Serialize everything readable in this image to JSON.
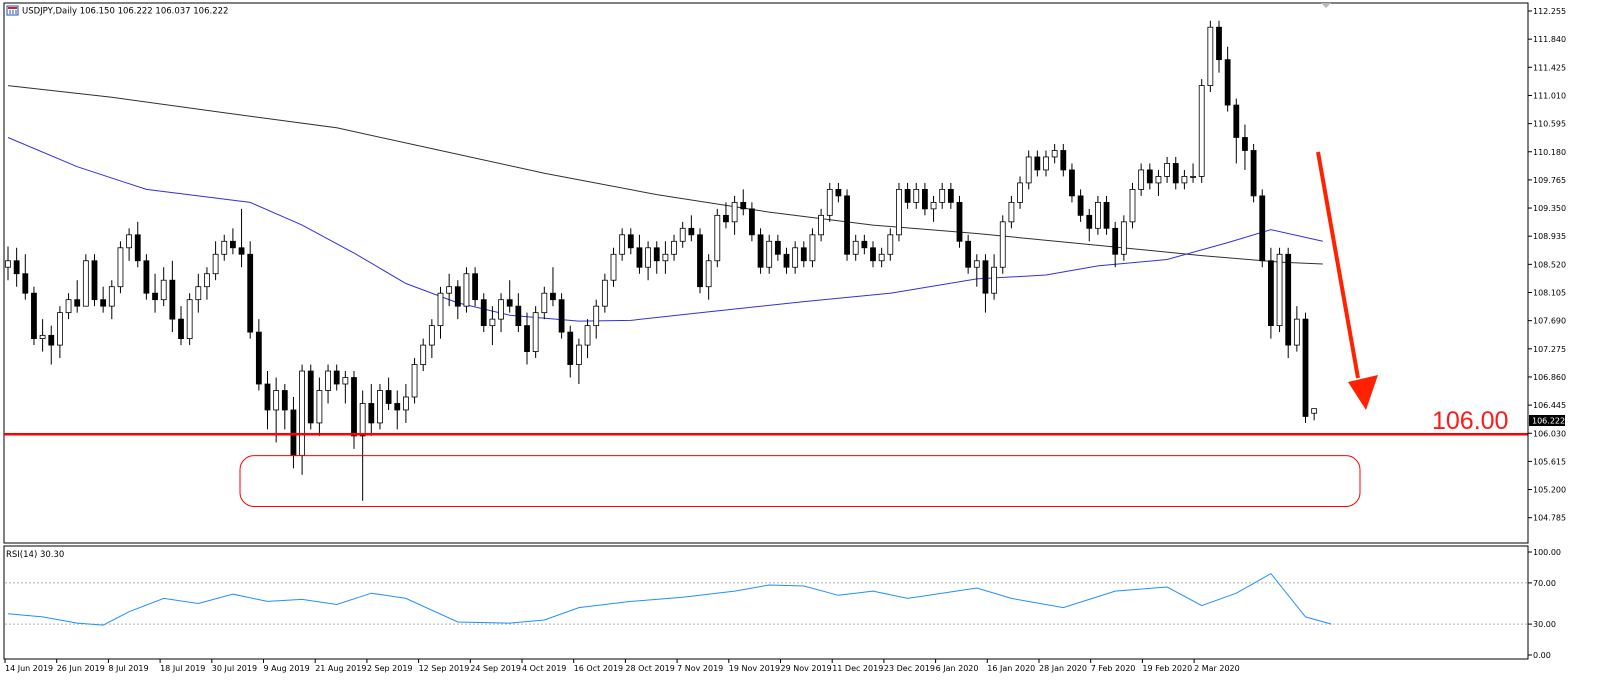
{
  "header": {
    "title": "USDJPY,Daily  106.150 106.222 106.037 106.222",
    "icon": "chart-window-icon"
  },
  "price_axis": {
    "ticks": [
      "112.255",
      "111.840",
      "111.425",
      "111.010",
      "110.595",
      "110.180",
      "109.765",
      "109.350",
      "108.935",
      "108.520",
      "108.105",
      "107.690",
      "107.275",
      "106.860",
      "106.445",
      "106.030",
      "105.615",
      "105.200",
      "104.785"
    ],
    "current_label": "106.222"
  },
  "rsi_axis": {
    "ticks": [
      "100.00",
      "70.00",
      "30.00",
      "0.00"
    ]
  },
  "rsi_panel": {
    "title": "RSI(14) 30.30"
  },
  "annotation": {
    "level_label": "106.00",
    "level_color": "#ff0000",
    "arrow_color": "#ff2200"
  },
  "date_axis": {
    "labels": [
      "14 Jun 2019",
      "26 Jun 2019",
      "8 Jul 2019",
      "18 Jul 2019",
      "30 Jul 2019",
      "9 Aug 2019",
      "21 Aug 2019",
      "2 Sep 2019",
      "12 Sep 2019",
      "24 Sep 2019",
      "4 Oct 2019",
      "16 Oct 2019",
      "28 Oct 2019",
      "7 Nov 2019",
      "19 Nov 2019",
      "29 Nov 2019",
      "11 Dec 2019",
      "23 Dec 2019",
      "6 Jan 2020",
      "16 Jan 2020",
      "28 Jan 2020",
      "7 Feb 2020",
      "19 Feb 2020",
      "2 Mar 2020"
    ]
  },
  "chart_data": {
    "type": "candlestick",
    "symbol": "USDJPY",
    "timeframe": "Daily",
    "ylim": [
      104.55,
      112.35
    ],
    "ohlc": [
      [
        108.4,
        108.72,
        108.2,
        108.5
      ],
      [
        108.5,
        108.7,
        108.1,
        108.3
      ],
      [
        108.3,
        108.6,
        107.9,
        108.0
      ],
      [
        108.0,
        108.1,
        107.2,
        107.3
      ],
      [
        107.3,
        107.6,
        107.1,
        107.35
      ],
      [
        107.35,
        107.5,
        106.9,
        107.2
      ],
      [
        107.2,
        107.8,
        107.0,
        107.7
      ],
      [
        107.7,
        108.0,
        107.6,
        107.9
      ],
      [
        107.9,
        108.2,
        107.7,
        107.8
      ],
      [
        107.8,
        108.6,
        107.8,
        108.5
      ],
      [
        108.5,
        108.6,
        107.8,
        107.9
      ],
      [
        107.9,
        108.1,
        107.7,
        107.8
      ],
      [
        107.8,
        108.2,
        107.6,
        108.1
      ],
      [
        108.1,
        108.8,
        108.0,
        108.7
      ],
      [
        108.7,
        109.0,
        108.5,
        108.9
      ],
      [
        108.9,
        109.1,
        108.4,
        108.5
      ],
      [
        108.5,
        108.6,
        107.9,
        108.0
      ],
      [
        108.0,
        108.3,
        107.7,
        107.9
      ],
      [
        107.9,
        108.4,
        107.8,
        108.2
      ],
      [
        108.2,
        108.5,
        107.4,
        107.6
      ],
      [
        107.6,
        107.8,
        107.2,
        107.3
      ],
      [
        107.3,
        108.0,
        107.2,
        107.9
      ],
      [
        107.9,
        108.3,
        107.7,
        108.1
      ],
      [
        108.1,
        108.4,
        107.9,
        108.3
      ],
      [
        108.3,
        108.8,
        108.2,
        108.6
      ],
      [
        108.6,
        108.9,
        108.5,
        108.8
      ],
      [
        108.8,
        109.0,
        108.6,
        108.7
      ],
      [
        108.7,
        109.3,
        108.4,
        108.6
      ],
      [
        108.6,
        108.8,
        107.3,
        107.4
      ],
      [
        107.4,
        107.6,
        106.5,
        106.6
      ],
      [
        106.6,
        106.8,
        105.9,
        106.2
      ],
      [
        106.2,
        106.7,
        105.7,
        106.5
      ],
      [
        106.5,
        106.6,
        105.9,
        106.2
      ],
      [
        106.2,
        106.4,
        105.3,
        105.5
      ],
      [
        105.5,
        106.9,
        105.2,
        106.8
      ],
      [
        106.8,
        106.9,
        105.9,
        106.0
      ],
      [
        106.0,
        106.7,
        105.8,
        106.5
      ],
      [
        106.5,
        106.9,
        106.3,
        106.8
      ],
      [
        106.8,
        106.9,
        106.5,
        106.6
      ],
      [
        106.6,
        106.8,
        106.3,
        106.7
      ],
      [
        106.7,
        106.8,
        105.6,
        105.8
      ],
      [
        105.8,
        106.5,
        104.8,
        106.3
      ],
      [
        106.3,
        106.6,
        105.8,
        106.0
      ],
      [
        106.0,
        106.6,
        105.9,
        106.5
      ],
      [
        106.5,
        106.7,
        106.2,
        106.3
      ],
      [
        106.3,
        106.5,
        105.9,
        106.2
      ],
      [
        106.2,
        106.6,
        106.0,
        106.4
      ],
      [
        106.4,
        107.0,
        106.3,
        106.9
      ],
      [
        106.9,
        107.3,
        106.8,
        107.2
      ],
      [
        107.2,
        107.6,
        107.0,
        107.5
      ],
      [
        107.5,
        108.1,
        107.3,
        108.0
      ],
      [
        108.0,
        108.3,
        107.8,
        108.1
      ],
      [
        108.1,
        108.2,
        107.6,
        107.8
      ],
      [
        107.8,
        108.4,
        107.7,
        108.3
      ],
      [
        108.3,
        108.4,
        107.8,
        107.9
      ],
      [
        107.9,
        108.0,
        107.4,
        107.5
      ],
      [
        107.5,
        107.8,
        107.2,
        107.6
      ],
      [
        107.6,
        108.0,
        107.4,
        107.9
      ],
      [
        107.9,
        108.2,
        107.7,
        107.8
      ],
      [
        107.8,
        108.0,
        107.4,
        107.5
      ],
      [
        107.5,
        107.7,
        106.9,
        107.1
      ],
      [
        107.1,
        107.8,
        107.0,
        107.7
      ],
      [
        107.7,
        108.1,
        107.6,
        108.0
      ],
      [
        108.0,
        108.4,
        107.8,
        107.9
      ],
      [
        107.9,
        108.0,
        107.3,
        107.4
      ],
      [
        107.4,
        107.5,
        106.7,
        106.9
      ],
      [
        106.9,
        107.3,
        106.6,
        107.2
      ],
      [
        107.2,
        107.6,
        107.0,
        107.5
      ],
      [
        107.5,
        107.9,
        107.3,
        107.8
      ],
      [
        107.8,
        108.3,
        107.7,
        108.2
      ],
      [
        108.2,
        108.7,
        108.1,
        108.6
      ],
      [
        108.6,
        109.0,
        108.5,
        108.9
      ],
      [
        108.9,
        109.0,
        108.6,
        108.7
      ],
      [
        108.7,
        108.9,
        108.3,
        108.4
      ],
      [
        108.4,
        108.8,
        108.2,
        108.7
      ],
      [
        108.7,
        108.8,
        108.3,
        108.5
      ],
      [
        108.5,
        108.8,
        108.3,
        108.6
      ],
      [
        108.6,
        108.9,
        108.5,
        108.8
      ],
      [
        108.8,
        109.1,
        108.7,
        109.0
      ],
      [
        109.0,
        109.2,
        108.8,
        108.9
      ],
      [
        108.9,
        109.0,
        108.0,
        108.1
      ],
      [
        108.1,
        108.6,
        107.9,
        108.5
      ],
      [
        108.5,
        109.3,
        108.4,
        109.2
      ],
      [
        109.2,
        109.4,
        109.0,
        109.1
      ],
      [
        109.1,
        109.5,
        108.9,
        109.4
      ],
      [
        109.4,
        109.6,
        109.2,
        109.3
      ],
      [
        109.3,
        109.4,
        108.8,
        108.9
      ],
      [
        108.9,
        109.0,
        108.3,
        108.4
      ],
      [
        108.4,
        108.9,
        108.3,
        108.8
      ],
      [
        108.8,
        108.9,
        108.5,
        108.6
      ],
      [
        108.6,
        108.7,
        108.3,
        108.4
      ],
      [
        108.4,
        108.8,
        108.3,
        108.7
      ],
      [
        108.7,
        108.8,
        108.4,
        108.5
      ],
      [
        108.5,
        109.0,
        108.4,
        108.9
      ],
      [
        108.9,
        109.3,
        108.8,
        109.2
      ],
      [
        109.2,
        109.7,
        109.1,
        109.6
      ],
      [
        109.6,
        109.7,
        109.4,
        109.5
      ],
      [
        109.5,
        109.6,
        108.5,
        108.6
      ],
      [
        108.6,
        108.9,
        108.5,
        108.8
      ],
      [
        108.8,
        108.9,
        108.6,
        108.7
      ],
      [
        108.7,
        108.8,
        108.4,
        108.5
      ],
      [
        108.5,
        108.7,
        108.4,
        108.6
      ],
      [
        108.6,
        109.0,
        108.5,
        108.9
      ],
      [
        108.9,
        109.7,
        108.8,
        109.6
      ],
      [
        109.6,
        109.7,
        109.3,
        109.4
      ],
      [
        109.4,
        109.7,
        109.3,
        109.6
      ],
      [
        109.6,
        109.7,
        109.2,
        109.3
      ],
      [
        109.3,
        109.5,
        109.1,
        109.4
      ],
      [
        109.4,
        109.7,
        109.3,
        109.6
      ],
      [
        109.6,
        109.7,
        109.3,
        109.4
      ],
      [
        109.4,
        109.5,
        108.7,
        108.8
      ],
      [
        108.8,
        108.9,
        108.3,
        108.4
      ],
      [
        108.4,
        108.6,
        108.1,
        108.5
      ],
      [
        108.5,
        108.6,
        107.7,
        108.0
      ],
      [
        108.0,
        108.6,
        107.9,
        108.4
      ],
      [
        108.4,
        109.2,
        108.3,
        109.1
      ],
      [
        109.1,
        109.5,
        109.0,
        109.4
      ],
      [
        109.4,
        109.8,
        109.3,
        109.7
      ],
      [
        109.7,
        110.2,
        109.6,
        110.1
      ],
      [
        110.1,
        110.2,
        109.8,
        109.9
      ],
      [
        109.9,
        110.2,
        109.8,
        110.1
      ],
      [
        110.1,
        110.3,
        110.0,
        110.2
      ],
      [
        110.2,
        110.3,
        109.8,
        109.9
      ],
      [
        109.9,
        110.0,
        109.4,
        109.5
      ],
      [
        109.5,
        109.6,
        109.1,
        109.2
      ],
      [
        109.2,
        109.3,
        108.8,
        109.0
      ],
      [
        109.0,
        109.5,
        108.9,
        109.4
      ],
      [
        109.4,
        109.5,
        108.9,
        109.0
      ],
      [
        109.0,
        109.1,
        108.4,
        108.6
      ],
      [
        108.6,
        109.2,
        108.5,
        109.1
      ],
      [
        109.1,
        109.7,
        109.0,
        109.6
      ],
      [
        109.6,
        110.0,
        109.5,
        109.9
      ],
      [
        109.9,
        110.0,
        109.6,
        109.7
      ],
      [
        109.7,
        109.9,
        109.5,
        109.8
      ],
      [
        109.8,
        110.1,
        109.7,
        110.0
      ],
      [
        110.0,
        110.1,
        109.6,
        109.7
      ],
      [
        109.7,
        109.9,
        109.6,
        109.8
      ],
      [
        109.8,
        110.0,
        109.7,
        109.8
      ],
      [
        109.8,
        111.3,
        109.7,
        111.2
      ],
      [
        111.2,
        112.2,
        111.1,
        112.1
      ],
      [
        112.1,
        112.2,
        111.4,
        111.6
      ],
      [
        111.6,
        111.8,
        110.8,
        110.9
      ],
      [
        110.9,
        111.0,
        110.0,
        110.4
      ],
      [
        110.4,
        110.6,
        109.9,
        110.2
      ],
      [
        110.2,
        110.3,
        109.4,
        109.5
      ],
      [
        109.5,
        109.6,
        108.4,
        108.5
      ],
      [
        108.5,
        108.7,
        107.3,
        107.5
      ],
      [
        107.5,
        108.7,
        107.4,
        108.6
      ],
      [
        108.6,
        108.7,
        107.0,
        107.2
      ],
      [
        107.2,
        107.8,
        107.1,
        107.6
      ],
      [
        107.6,
        107.7,
        106.0,
        106.1
      ],
      [
        106.15,
        106.22,
        106.04,
        106.22
      ]
    ],
    "ma_slow": [
      [
        0,
        111.2
      ],
      [
        12,
        111.02
      ],
      [
        25,
        110.78
      ],
      [
        38,
        110.55
      ],
      [
        50,
        110.2
      ],
      [
        62,
        109.85
      ],
      [
        75,
        109.52
      ],
      [
        88,
        109.25
      ],
      [
        100,
        109.05
      ],
      [
        112,
        108.92
      ],
      [
        125,
        108.75
      ],
      [
        138,
        108.58
      ],
      [
        147,
        108.48
      ],
      [
        152,
        108.45
      ]
    ],
    "ma_fast": [
      [
        0,
        110.4
      ],
      [
        8,
        109.95
      ],
      [
        16,
        109.6
      ],
      [
        28,
        109.4
      ],
      [
        34,
        109.05
      ],
      [
        40,
        108.62
      ],
      [
        46,
        108.15
      ],
      [
        52,
        107.85
      ],
      [
        58,
        107.66
      ],
      [
        66,
        107.57
      ],
      [
        72,
        107.58
      ],
      [
        80,
        107.7
      ],
      [
        92,
        107.87
      ],
      [
        102,
        108.0
      ],
      [
        112,
        108.22
      ],
      [
        120,
        108.28
      ],
      [
        126,
        108.42
      ],
      [
        134,
        108.52
      ],
      [
        141,
        108.78
      ],
      [
        146,
        108.98
      ],
      [
        152,
        108.8
      ]
    ],
    "rsi": [
      [
        0,
        40
      ],
      [
        4,
        37
      ],
      [
        8,
        31
      ],
      [
        11,
        29
      ],
      [
        14,
        42
      ],
      [
        18,
        55
      ],
      [
        22,
        50
      ],
      [
        26,
        59
      ],
      [
        30,
        52
      ],
      [
        34,
        54
      ],
      [
        38,
        49
      ],
      [
        42,
        60
      ],
      [
        46,
        55
      ],
      [
        52,
        32
      ],
      [
        58,
        31
      ],
      [
        62,
        34
      ],
      [
        66,
        46
      ],
      [
        72,
        52
      ],
      [
        78,
        56
      ],
      [
        84,
        62
      ],
      [
        88,
        68
      ],
      [
        92,
        67
      ],
      [
        96,
        58
      ],
      [
        100,
        62
      ],
      [
        104,
        55
      ],
      [
        108,
        60
      ],
      [
        112,
        65
      ],
      [
        116,
        55
      ],
      [
        122,
        46
      ],
      [
        128,
        62
      ],
      [
        134,
        66
      ],
      [
        138,
        48
      ],
      [
        142,
        60
      ],
      [
        146,
        79
      ],
      [
        150,
        37
      ],
      [
        153,
        30
      ]
    ],
    "support_level": 106.0,
    "zone": [
      104.95,
      105.7
    ],
    "rsi_levels": [
      70,
      30
    ],
    "current_price": 106.222
  }
}
